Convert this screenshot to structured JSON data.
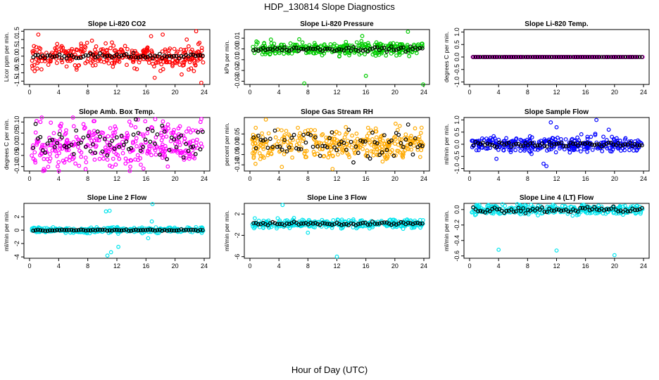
{
  "figure": {
    "title": "HDP_130814  Slope Diagnostics",
    "xlabel": "Hour of Day (UTC)"
  },
  "chart_data": [
    {
      "type": "scatter",
      "title": "Slope Li-820 CO2",
      "ylabel": "Licor ppm per min.",
      "xlim": [
        0,
        24
      ],
      "xticks": [
        0,
        4,
        8,
        12,
        16,
        20,
        24
      ],
      "ylim": [
        -1.7,
        1.6
      ],
      "yticks": [
        -1.5,
        -1.0,
        -0.5,
        0.0,
        0.5,
        1.0,
        1.5
      ],
      "ytick_labels": [
        "-1.5",
        "-1.0",
        "-0.5",
        "0.0",
        "0.5",
        "1.0",
        "1.5"
      ],
      "color": "#ff0000",
      "spread": 0.35,
      "black_spread": 0.08,
      "center": 0.0,
      "outliers": [
        [
          16.7,
          1.2
        ],
        [
          17.2,
          -1.3
        ],
        [
          18.3,
          1.3
        ],
        [
          21.6,
          1.0
        ],
        [
          22.9,
          1.5
        ],
        [
          23.6,
          -1.6
        ],
        [
          20.9,
          -1.1
        ],
        [
          1.2,
          1.3
        ],
        [
          0.7,
          -0.9
        ]
      ]
    },
    {
      "type": "scatter",
      "title": "Slope Li-820 Pressure",
      "ylabel": "kPa per min.",
      "xlim": [
        0,
        24
      ],
      "xticks": [
        0,
        4,
        8,
        12,
        16,
        20,
        24
      ],
      "ylim": [
        -0.033,
        0.018
      ],
      "yticks": [
        -0.03,
        -0.02,
        -0.01,
        0.0,
        0.01
      ],
      "ytick_labels": [
        "-0.03",
        "-0.02",
        "-0.01",
        "0.00",
        "0.01"
      ],
      "color": "#00cc00",
      "spread": 0.003,
      "black_spread": 0.001,
      "center": 0.0,
      "outliers": [
        [
          7.5,
          -0.032
        ],
        [
          16.0,
          -0.025
        ],
        [
          23.9,
          -0.033
        ],
        [
          21.8,
          0.016
        ],
        [
          15.5,
          0.012
        ],
        [
          6.8,
          0.009
        ]
      ]
    },
    {
      "type": "scatter",
      "title": "Slope Li-820 Temp.",
      "ylabel": "degrees C per min.",
      "xlim": [
        0,
        24
      ],
      "xticks": [
        0,
        4,
        8,
        12,
        16,
        20,
        24
      ],
      "ylim": [
        -1.1,
        1.1
      ],
      "yticks": [
        -1.0,
        -0.5,
        0.0,
        0.5,
        1.0
      ],
      "ytick_labels": [
        "-1.0",
        "-0.5",
        "0.0",
        "0.5",
        "1.0"
      ],
      "color": "#ff00ff",
      "spread": 0.0,
      "black_spread": 0.0,
      "center": 0.0,
      "outliers": []
    },
    {
      "type": "scatter",
      "title": "Slope Amb. Box Temp.",
      "ylabel": "degrees C per min.",
      "xlim": [
        0,
        24
      ],
      "xticks": [
        0,
        4,
        8,
        12,
        16,
        20,
        24
      ],
      "ylim": [
        -0.12,
        0.12
      ],
      "yticks": [
        -0.1,
        -0.05,
        0.0,
        0.05,
        0.1
      ],
      "ytick_labels": [
        "-0.10",
        "-0.05",
        "0.00",
        "0.05",
        "0.10"
      ],
      "color": "#ff00ff",
      "spread": 0.05,
      "black_spread": 0.045,
      "center": 0.0,
      "outliers": [
        [
          1.5,
          0.1
        ],
        [
          19.0,
          -0.1
        ],
        [
          23.5,
          0.1
        ]
      ]
    },
    {
      "type": "scatter",
      "title": "Slope Gas Stream RH",
      "ylabel": "percent per min.",
      "xlim": [
        0,
        24
      ],
      "xticks": [
        0,
        4,
        8,
        12,
        16,
        20,
        24
      ],
      "ylim": [
        -0.13,
        0.13
      ],
      "yticks": [
        -0.1,
        -0.05,
        0.0,
        0.05
      ],
      "ytick_labels": [
        "-0.10",
        "-0.05",
        "0.00",
        "0.05"
      ],
      "color": "#ffaa00",
      "spread": 0.035,
      "black_spread": 0.035,
      "center": 0.0,
      "outliers": [
        [
          2.2,
          0.12
        ],
        [
          0.8,
          0.08
        ],
        [
          4.4,
          -0.11
        ],
        [
          11.4,
          -0.12
        ],
        [
          20.1,
          0.1
        ],
        [
          16.3,
          0.08
        ]
      ]
    },
    {
      "type": "scatter",
      "title": "Slope Sample Flow",
      "ylabel": "ml/min per min.",
      "xlim": [
        0,
        24
      ],
      "xticks": [
        0,
        4,
        8,
        12,
        16,
        20,
        24
      ],
      "ylim": [
        -1.1,
        1.1
      ],
      "yticks": [
        -1.0,
        -0.5,
        0.0,
        0.5,
        1.0
      ],
      "ytick_labels": [
        "-1.0",
        "-0.5",
        "0.0",
        "0.5",
        "1.0"
      ],
      "color": "#0000ff",
      "spread": 0.15,
      "black_spread": 0.05,
      "center": 0.0,
      "outliers": [
        [
          10.2,
          -0.8
        ],
        [
          11.2,
          0.9
        ],
        [
          12.0,
          0.7
        ],
        [
          17.5,
          1.0
        ],
        [
          19.2,
          0.6
        ],
        [
          10.6,
          -0.9
        ],
        [
          3.7,
          -0.6
        ]
      ]
    },
    {
      "type": "scatter",
      "title": "Slope Line 2 Flow",
      "ylabel": "ml/min per min.",
      "xlim": [
        0,
        24
      ],
      "xticks": [
        0,
        4,
        8,
        12,
        16,
        20,
        24
      ],
      "ylim": [
        -4.2,
        4.0
      ],
      "yticks": [
        -4,
        -2,
        0,
        2
      ],
      "ytick_labels": [
        "-4",
        "-2",
        "0",
        "2"
      ],
      "color": "#00e5ee",
      "spread": 0.2,
      "black_spread": 0.05,
      "center": 0.0,
      "outliers": [
        [
          10.5,
          2.8
        ],
        [
          11.0,
          2.9
        ],
        [
          10.7,
          -3.8
        ],
        [
          11.2,
          -3.3
        ],
        [
          12.2,
          -2.5
        ],
        [
          16.9,
          3.9
        ],
        [
          16.3,
          -1.2
        ],
        [
          16.8,
          1.3
        ]
      ]
    },
    {
      "type": "scatter",
      "title": "Slope Line 3 Flow",
      "ylabel": "ml/min per min.",
      "xlim": [
        0,
        24
      ],
      "xticks": [
        0,
        4,
        8,
        12,
        16,
        20,
        24
      ],
      "ylim": [
        -6.3,
        4.0
      ],
      "yticks": [
        -6,
        -2,
        2
      ],
      "ytick_labels": [
        "-6",
        "-2",
        "2"
      ],
      "color": "#00e5ee",
      "spread": 0.4,
      "black_spread": 0.15,
      "center": 0.2,
      "outliers": [
        [
          4.5,
          3.7
        ],
        [
          12.0,
          -6.0
        ],
        [
          8.0,
          -1.5
        ]
      ]
    },
    {
      "type": "scatter",
      "title": "Slope Line 4 (LT) Flow",
      "ylabel": "ml/min per min.",
      "xlim": [
        0,
        24
      ],
      "xticks": [
        0,
        4,
        8,
        12,
        16,
        20,
        24
      ],
      "ylim": [
        -0.63,
        0.08
      ],
      "yticks": [
        -0.6,
        -0.4,
        -0.2,
        0.0
      ],
      "ytick_labels": [
        "-0.6",
        "-0.4",
        "-0.2",
        "0.0"
      ],
      "color": "#00e5ee",
      "spread": 0.03,
      "black_spread": 0.02,
      "center": 0.0,
      "outliers": [
        [
          4.0,
          -0.52
        ],
        [
          12.0,
          -0.53
        ],
        [
          20.0,
          -0.59
        ],
        [
          11.5,
          0.06
        ]
      ]
    }
  ]
}
